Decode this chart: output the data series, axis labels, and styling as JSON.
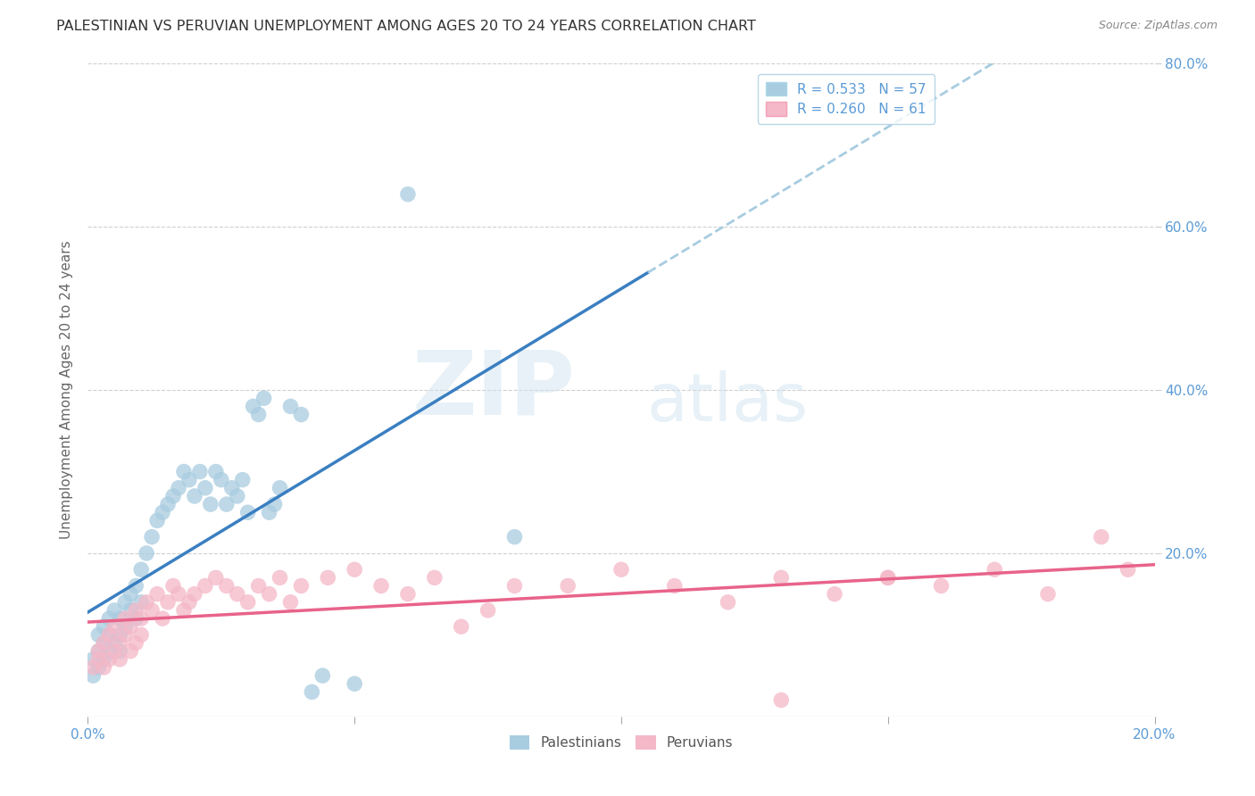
{
  "title": "PALESTINIAN VS PERUVIAN UNEMPLOYMENT AMONG AGES 20 TO 24 YEARS CORRELATION CHART",
  "source": "Source: ZipAtlas.com",
  "ylabel": "Unemployment Among Ages 20 to 24 years",
  "xlim": [
    0.0,
    0.2
  ],
  "ylim": [
    0.0,
    0.8
  ],
  "R_palestinian": 0.533,
  "N_palestinian": 57,
  "R_peruvian": 0.26,
  "N_peruvian": 61,
  "blue_scatter_color": "#a8cce0",
  "pink_scatter_color": "#f4b8c8",
  "blue_line_color": "#3a7fc1",
  "pink_line_color": "#e8638a",
  "blue_dash_color": "#a8cce0",
  "axis_label_color": "#5b9bd5",
  "ylabel_color": "#666666",
  "title_color": "#333333",
  "source_color": "#888888",
  "grid_color": "#d0d0d0",
  "background_color": "#ffffff",
  "watermark_zip_color": "#c8daea",
  "watermark_atlas_color": "#c8daea",
  "palestinian_x": [
    0.001,
    0.001,
    0.002,
    0.002,
    0.002,
    0.003,
    0.003,
    0.003,
    0.004,
    0.004,
    0.004,
    0.005,
    0.005,
    0.006,
    0.006,
    0.006,
    0.007,
    0.007,
    0.008,
    0.008,
    0.009,
    0.009,
    0.01,
    0.01,
    0.011,
    0.012,
    0.013,
    0.014,
    0.015,
    0.016,
    0.017,
    0.018,
    0.019,
    0.02,
    0.021,
    0.022,
    0.023,
    0.024,
    0.025,
    0.026,
    0.027,
    0.028,
    0.029,
    0.03,
    0.031,
    0.032,
    0.033,
    0.034,
    0.035,
    0.036,
    0.038,
    0.04,
    0.042,
    0.044,
    0.05,
    0.06,
    0.08
  ],
  "palestinian_y": [
    0.05,
    0.07,
    0.06,
    0.08,
    0.1,
    0.07,
    0.09,
    0.11,
    0.08,
    0.1,
    0.12,
    0.09,
    0.13,
    0.1,
    0.08,
    0.12,
    0.14,
    0.11,
    0.15,
    0.13,
    0.16,
    0.12,
    0.18,
    0.14,
    0.2,
    0.22,
    0.24,
    0.25,
    0.26,
    0.27,
    0.28,
    0.3,
    0.29,
    0.27,
    0.3,
    0.28,
    0.26,
    0.3,
    0.29,
    0.26,
    0.28,
    0.27,
    0.29,
    0.25,
    0.38,
    0.37,
    0.39,
    0.25,
    0.26,
    0.28,
    0.38,
    0.37,
    0.03,
    0.05,
    0.04,
    0.64,
    0.22
  ],
  "peruvian_x": [
    0.001,
    0.002,
    0.002,
    0.003,
    0.003,
    0.004,
    0.004,
    0.005,
    0.005,
    0.006,
    0.006,
    0.007,
    0.007,
    0.008,
    0.008,
    0.009,
    0.009,
    0.01,
    0.01,
    0.011,
    0.012,
    0.013,
    0.014,
    0.015,
    0.016,
    0.017,
    0.018,
    0.019,
    0.02,
    0.022,
    0.024,
    0.026,
    0.028,
    0.03,
    0.032,
    0.034,
    0.036,
    0.038,
    0.04,
    0.045,
    0.05,
    0.055,
    0.06,
    0.065,
    0.07,
    0.075,
    0.08,
    0.09,
    0.1,
    0.11,
    0.12,
    0.13,
    0.14,
    0.15,
    0.16,
    0.17,
    0.18,
    0.19,
    0.195,
    0.15,
    0.13
  ],
  "peruvian_y": [
    0.06,
    0.07,
    0.08,
    0.06,
    0.09,
    0.07,
    0.1,
    0.08,
    0.11,
    0.07,
    0.09,
    0.1,
    0.12,
    0.08,
    0.11,
    0.13,
    0.09,
    0.12,
    0.1,
    0.14,
    0.13,
    0.15,
    0.12,
    0.14,
    0.16,
    0.15,
    0.13,
    0.14,
    0.15,
    0.16,
    0.17,
    0.16,
    0.15,
    0.14,
    0.16,
    0.15,
    0.17,
    0.14,
    0.16,
    0.17,
    0.18,
    0.16,
    0.15,
    0.17,
    0.11,
    0.13,
    0.16,
    0.16,
    0.18,
    0.16,
    0.14,
    0.17,
    0.15,
    0.17,
    0.16,
    0.18,
    0.15,
    0.22,
    0.18,
    0.17,
    0.02
  ],
  "title_fontsize": 11.5,
  "source_fontsize": 9,
  "ylabel_fontsize": 11,
  "tick_fontsize": 11,
  "legend_fontsize": 11
}
